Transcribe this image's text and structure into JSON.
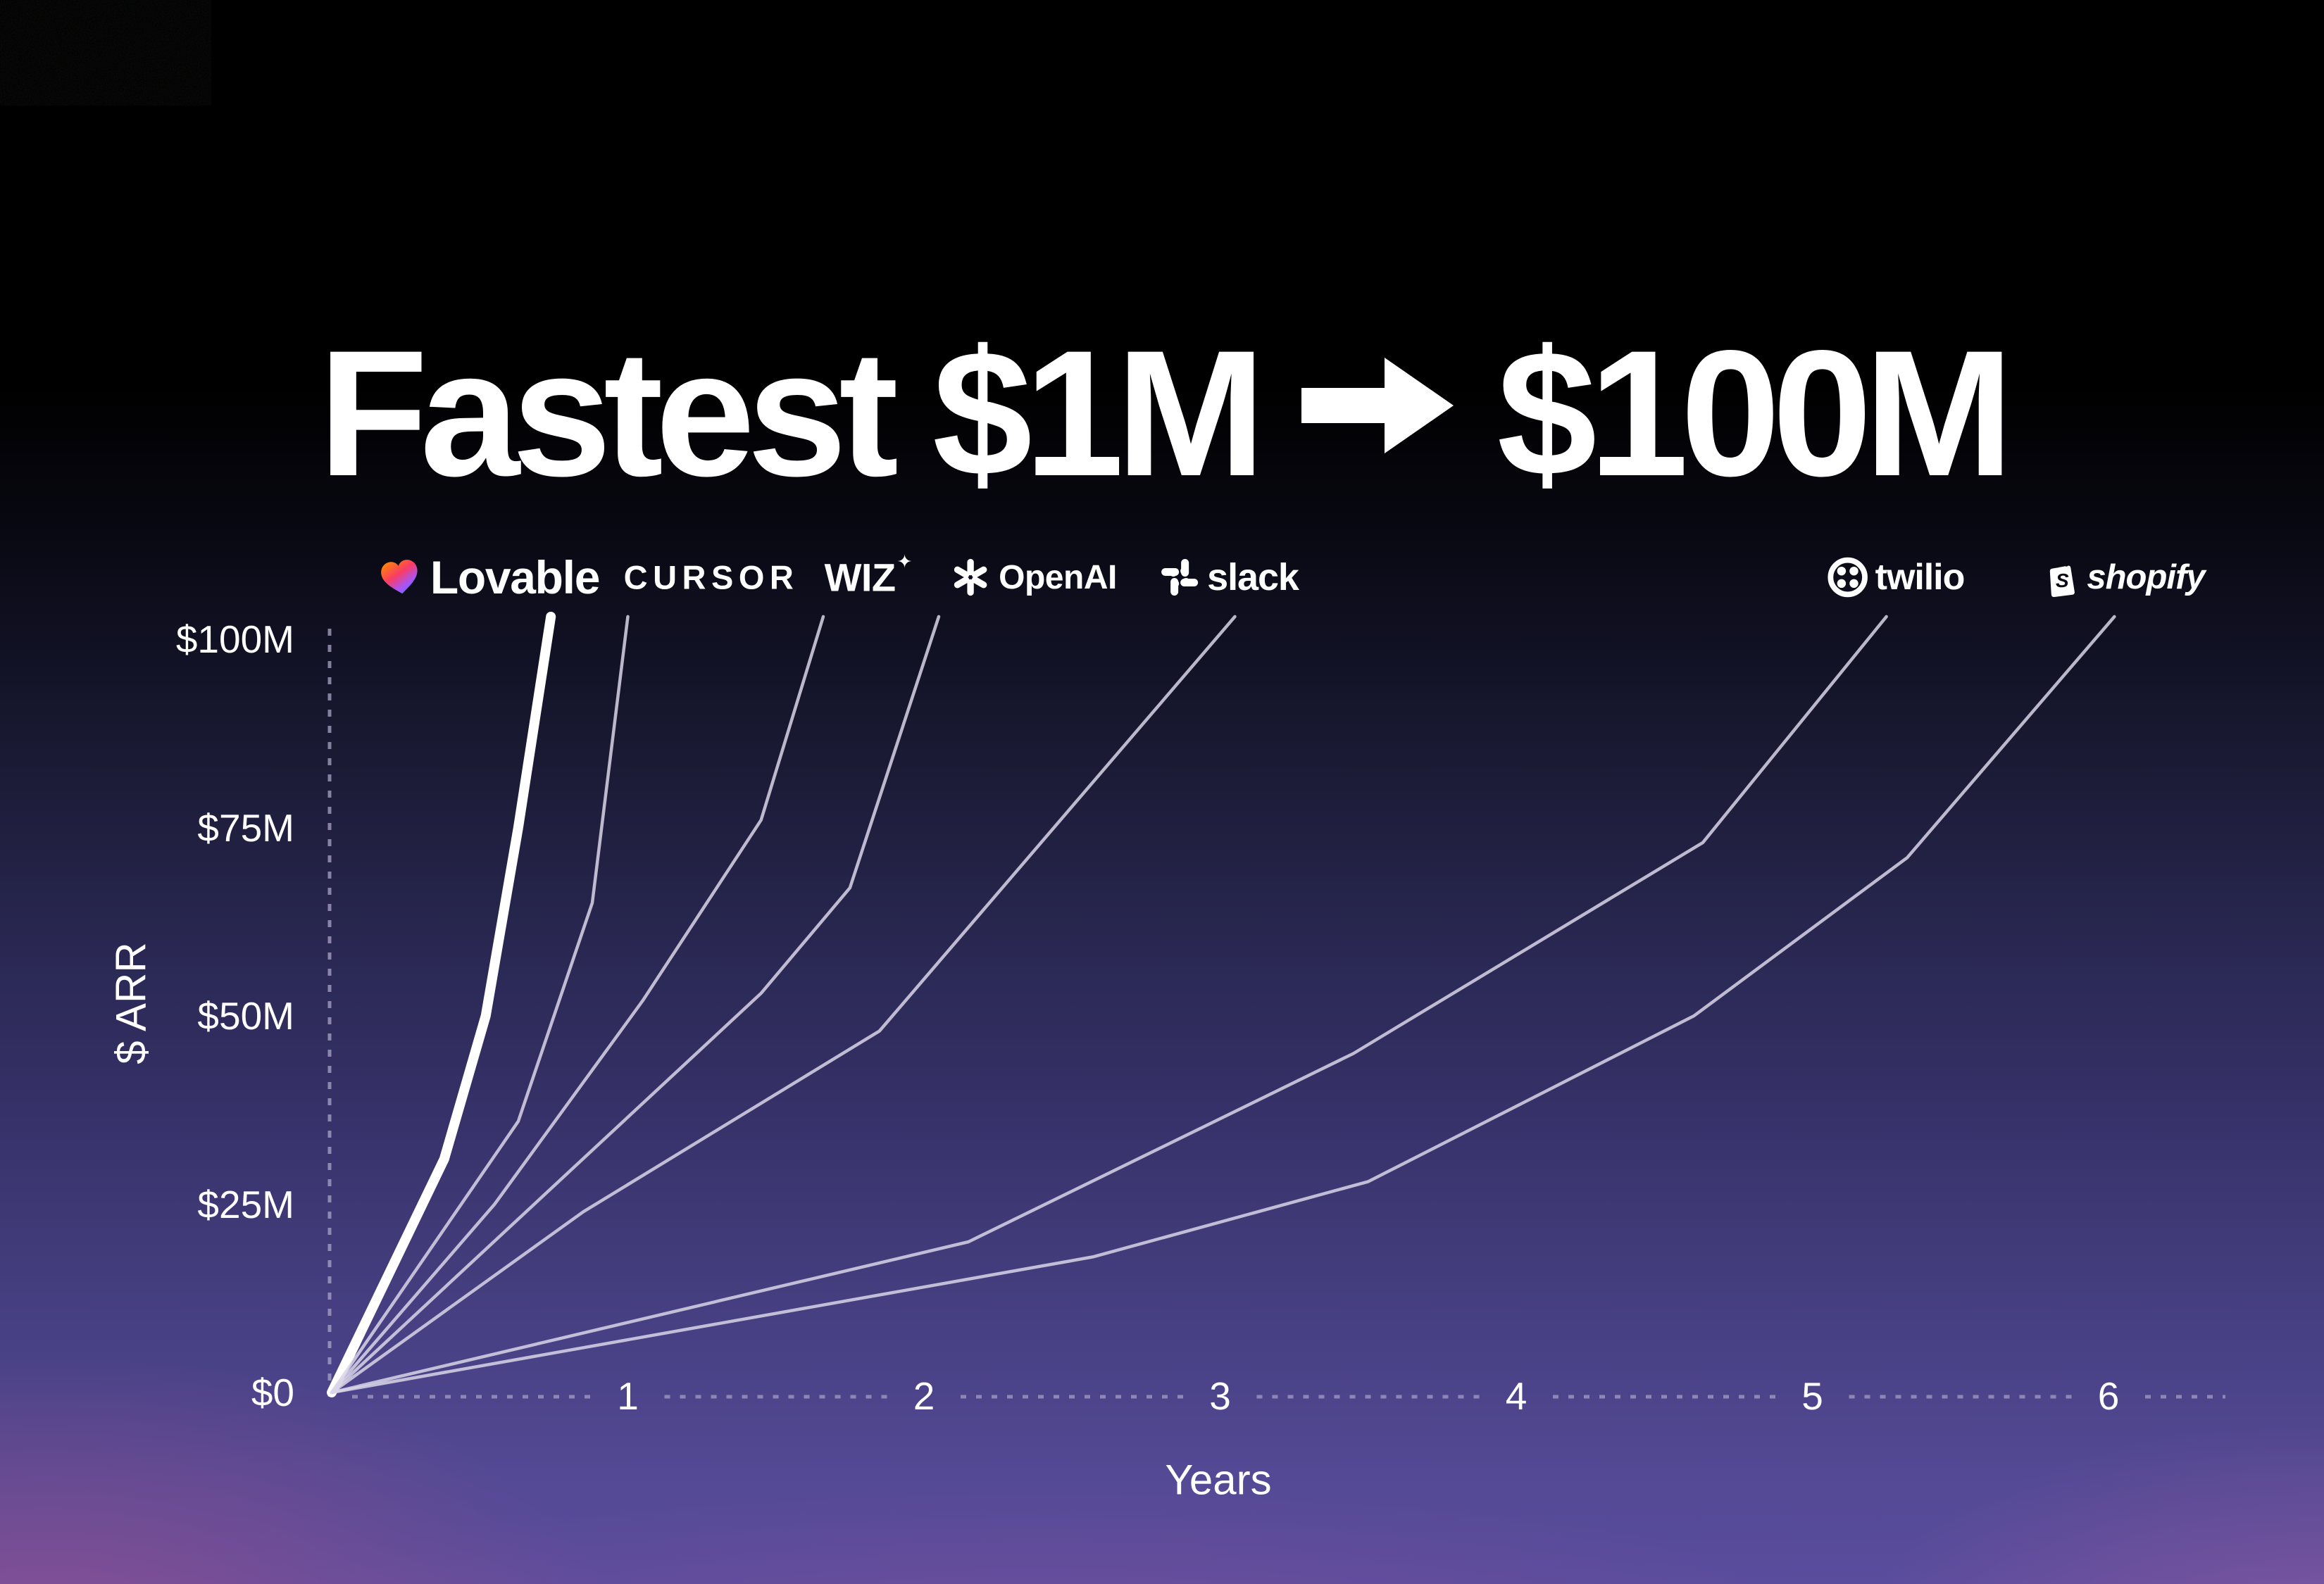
{
  "title": {
    "left": "Fastest $1M",
    "arrow_icon": "→",
    "right": "$100M"
  },
  "logos": [
    {
      "name": "Lovable",
      "label": "Lovable",
      "icon": "lovable-heart-icon"
    },
    {
      "name": "Cursor",
      "label": "CURSOR"
    },
    {
      "name": "Wiz",
      "label": "WIZ",
      "sparkle": "✦"
    },
    {
      "name": "OpenAI",
      "label": "OpenAI",
      "icon": "openai-blossom-icon"
    },
    {
      "name": "Slack",
      "label": "slack",
      "icon": "slack-hash-icon"
    },
    {
      "name": "Twilio",
      "label": "twilio",
      "icon": "twilio-ring-icon"
    },
    {
      "name": "Shopify",
      "label": "shopify",
      "icon": "shopify-bag-icon"
    }
  ],
  "chart_data": {
    "type": "line",
    "title": "Fastest $1M → $100M",
    "xlabel": "Years",
    "ylabel": "$ ARR",
    "x_ticks": [
      "1",
      "2",
      "3",
      "4",
      "5",
      "6"
    ],
    "x_tick_values": [
      1,
      2,
      3,
      4,
      5,
      6
    ],
    "y_ticks": [
      "$0",
      "$25M",
      "$50M",
      "$75M",
      "$100M"
    ],
    "y_tick_values": [
      0,
      25,
      50,
      75,
      100
    ],
    "xlim": [
      0,
      6.35
    ],
    "ylim": [
      0,
      107
    ],
    "grid": false,
    "legend_position": "logos-above-curve-endpoints",
    "units": "ARR in $ millions, time in years from $1M ARR",
    "series": [
      {
        "name": "Lovable",
        "emphasis": true,
        "points": [
          [
            0,
            0
          ],
          [
            0.38,
            31
          ],
          [
            0.52,
            50
          ],
          [
            0.63,
            75
          ],
          [
            0.74,
            103
          ]
        ]
      },
      {
        "name": "Cursor",
        "points": [
          [
            0,
            0
          ],
          [
            0.63,
            36
          ],
          [
            0.88,
            65
          ],
          [
            1.0,
            103
          ]
        ]
      },
      {
        "name": "Wiz",
        "points": [
          [
            0,
            0
          ],
          [
            0.55,
            25
          ],
          [
            1.05,
            52
          ],
          [
            1.45,
            76
          ],
          [
            1.66,
            103
          ]
        ]
      },
      {
        "name": "OpenAI",
        "points": [
          [
            0,
            0
          ],
          [
            1.45,
            53
          ],
          [
            1.75,
            67
          ],
          [
            2.05,
            103
          ]
        ]
      },
      {
        "name": "Slack",
        "points": [
          [
            0,
            0
          ],
          [
            0.85,
            24
          ],
          [
            1.85,
            48
          ],
          [
            3.05,
            103
          ]
        ]
      },
      {
        "name": "Twilio",
        "points": [
          [
            0,
            0
          ],
          [
            2.15,
            20
          ],
          [
            3.45,
            45
          ],
          [
            4.63,
            73
          ],
          [
            5.25,
            103
          ]
        ]
      },
      {
        "name": "Shopify",
        "points": [
          [
            0,
            0
          ],
          [
            2.57,
            18
          ],
          [
            3.5,
            28
          ],
          [
            4.6,
            50
          ],
          [
            5.32,
            71
          ],
          [
            6.02,
            103
          ]
        ]
      }
    ]
  },
  "colors": {
    "emphasis_line": "#ffffff",
    "line_thin": "#d9d5e8",
    "axis_dash": "#aaa4c6",
    "background_top": "#000000",
    "background_bottom": "#5a4d9d",
    "glow_pink": "#db5484",
    "lovable_gradient": [
      "#ff8a00",
      "#fa3c64",
      "#a855f7",
      "#6f6cff"
    ]
  }
}
